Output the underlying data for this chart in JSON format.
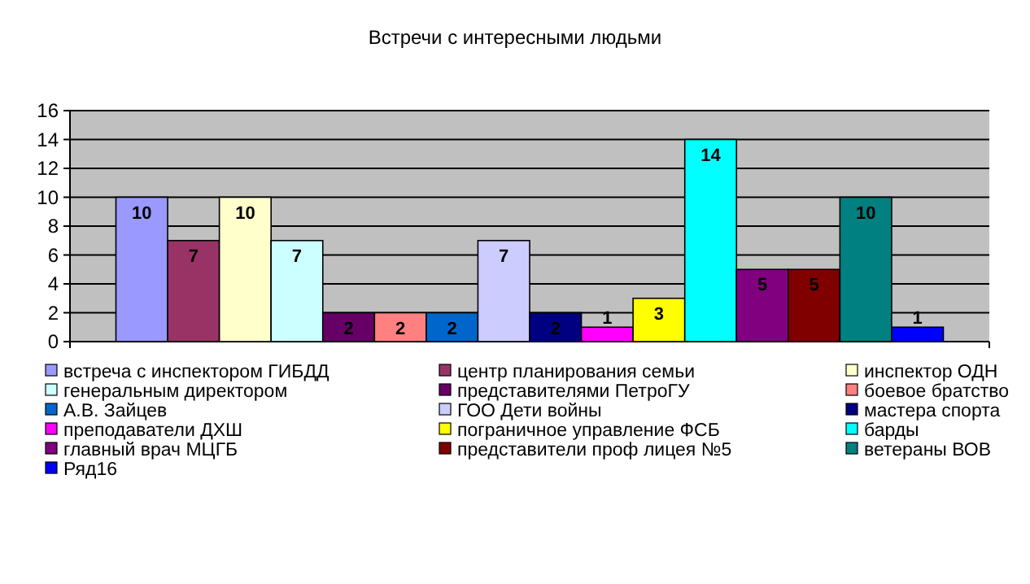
{
  "chart_data": {
    "type": "bar",
    "title": "Встречи с интересными людьми",
    "categories": [
      null
    ],
    "ylim": [
      0,
      16
    ],
    "yticks": [
      0,
      2,
      4,
      6,
      8,
      10,
      12,
      14,
      16
    ],
    "grid": "y",
    "legend": "bottom",
    "data_labels": true,
    "series": [
      {
        "name": "встреча с инспектором ГИБДД",
        "color": "#9999ff",
        "values": [
          10
        ]
      },
      {
        "name": "центр планирования семьи",
        "color": "#993366",
        "values": [
          7
        ]
      },
      {
        "name": "инспектор ОДН",
        "color": "#ffffcc",
        "values": [
          10
        ]
      },
      {
        "name": "генеральным директором",
        "color": "#ccffff",
        "values": [
          7
        ]
      },
      {
        "name": "представителями ПетроГУ",
        "color": "#660066",
        "values": [
          2
        ]
      },
      {
        "name": "боевое братство",
        "color": "#ff8080",
        "values": [
          2
        ]
      },
      {
        "name": "А.В. Зайцев",
        "color": "#0066cc",
        "values": [
          2
        ]
      },
      {
        "name": "ГОО Дети войны",
        "color": "#ccccff",
        "values": [
          7
        ]
      },
      {
        "name": "мастера спорта",
        "color": "#000080",
        "values": [
          2
        ]
      },
      {
        "name": "преподаватели ДХШ",
        "color": "#ff00ff",
        "values": [
          1
        ]
      },
      {
        "name": "пограничное управление ФСБ",
        "color": "#ffff00",
        "values": [
          3
        ]
      },
      {
        "name": "барды",
        "color": "#00ffff",
        "values": [
          14
        ]
      },
      {
        "name": "главный врач МЦГБ",
        "color": "#800080",
        "values": [
          5
        ]
      },
      {
        "name": "представители проф лицея №5",
        "color": "#800000",
        "values": [
          5
        ]
      },
      {
        "name": "ветераны ВОВ",
        "color": "#008080",
        "values": [
          10
        ]
      },
      {
        "name": "Ряд16",
        "color": "#0000ff",
        "values": [
          1
        ]
      }
    ]
  }
}
